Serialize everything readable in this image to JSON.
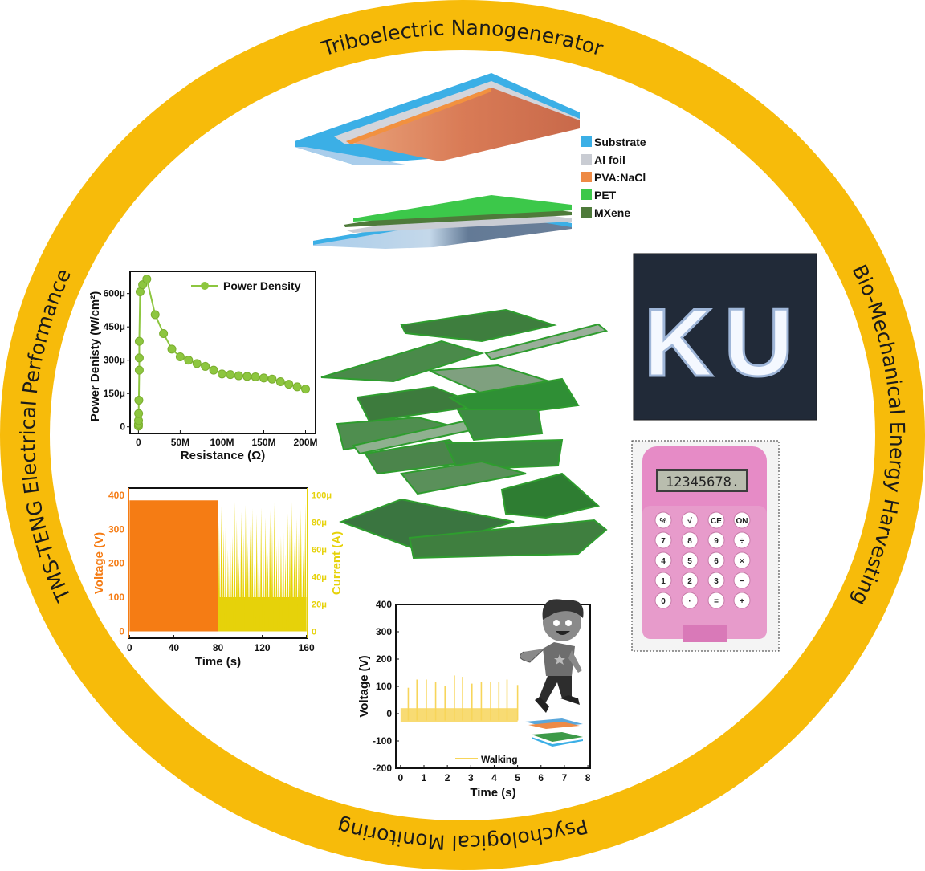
{
  "ring": {
    "color": "#F7BB0A",
    "top": "Triboelectric Nanogenerator",
    "right": "Bio-Mechanical Energy Harvesting",
    "bottom": "Psychological Monitoring",
    "left": "TMS-TENG Electrical Performance"
  },
  "teng_legend": [
    {
      "label": "Substrate",
      "color": "#3BAFE6"
    },
    {
      "label": "Al foil",
      "color": "#C9CCD3"
    },
    {
      "label": "PVA:NaCl",
      "color": "#EE8A45"
    },
    {
      "label": "PET",
      "color": "#3CC84A"
    },
    {
      "label": "MXene",
      "color": "#4E7A3A"
    }
  ],
  "led_photo": {
    "letters": [
      "K",
      "U"
    ]
  },
  "calculator": {
    "display": "12345678.",
    "keys": [
      [
        "%",
        "√",
        "CE",
        "ON"
      ],
      [
        "7",
        "8",
        "9",
        "÷"
      ],
      [
        "4",
        "5",
        "6",
        "×"
      ],
      [
        "1",
        "2",
        "3",
        "−"
      ],
      [
        "0",
        "·",
        "=",
        "+"
      ]
    ]
  },
  "chart_data": [
    {
      "type": "line",
      "title": "",
      "xlabel": "Resistance (Ω)",
      "ylabel": "Power Denisty (W/cm²)",
      "legend": "top-right",
      "series": [
        {
          "name": "Power Density",
          "color": "#8DC63F",
          "points": [
            [
              0.01,
              3
            ],
            [
              0.05,
              12
            ],
            [
              0.1,
              28
            ],
            [
              0.2,
              60
            ],
            [
              0.5,
              120
            ],
            [
              1,
              255
            ],
            [
              1,
              310
            ],
            [
              1,
              385
            ],
            [
              2,
              608
            ],
            [
              5,
              640
            ],
            [
              10,
              665
            ],
            [
              20,
              505
            ],
            [
              30,
              420
            ],
            [
              40,
              350
            ],
            [
              50,
              315
            ],
            [
              60,
              300
            ],
            [
              70,
              285
            ],
            [
              80,
              272
            ],
            [
              90,
              255
            ],
            [
              100,
              238
            ],
            [
              110,
              235
            ],
            [
              120,
              230
            ],
            [
              130,
              227
            ],
            [
              140,
              225
            ],
            [
              150,
              220
            ],
            [
              160,
              215
            ],
            [
              170,
              203
            ],
            [
              180,
              192
            ],
            [
              190,
              180
            ],
            [
              200,
              170
            ]
          ]
        }
      ],
      "x_unit": "MΩ",
      "y_unit": "μW/cm²",
      "xticks": [
        "0",
        "50M",
        "100M",
        "150M",
        "200M"
      ],
      "xtick_values": [
        0,
        50,
        100,
        150,
        200
      ],
      "yticks": [
        "0",
        "150μ",
        "300μ",
        "450μ",
        "600μ"
      ],
      "ytick_values": [
        0,
        150,
        300,
        450,
        600
      ],
      "xlim": [
        -10,
        212
      ],
      "ylim": [
        -30,
        700
      ]
    },
    {
      "type": "bar",
      "xlabel": "Time (s)",
      "ylabel_left": "Voltage (V)",
      "ylabel_right": "Current (A)",
      "voltage": {
        "color": "#F57C14",
        "t_range": [
          0,
          80
        ],
        "peak": 385
      },
      "current": {
        "color": "#E6D20A",
        "t_range": [
          80,
          160
        ],
        "peaks_uA": [
          80,
          92,
          75,
          85,
          60,
          90,
          70,
          95,
          82,
          55,
          88,
          72,
          93,
          65,
          78,
          90,
          50,
          86,
          74,
          91,
          68,
          84,
          58,
          89,
          77,
          94,
          63,
          81,
          70,
          92,
          57,
          87,
          79,
          95,
          66,
          83,
          73,
          90,
          61,
          94
        ]
      },
      "xticks": [
        "0",
        "40",
        "80",
        "120",
        "160"
      ],
      "xtick_values": [
        0,
        40,
        80,
        120,
        160
      ],
      "yticks_left": [
        "0",
        "100",
        "200",
        "300",
        "400"
      ],
      "ytick_left_values": [
        0,
        100,
        200,
        300,
        400
      ],
      "yticks_right": [
        "0",
        "20μ",
        "40μ",
        "60μ",
        "80μ",
        "100μ"
      ],
      "ytick_right_values": [
        0,
        20,
        40,
        60,
        80,
        100
      ],
      "xlim": [
        -1,
        161
      ],
      "ylim_left": [
        -20,
        421
      ],
      "ylim_right_uA": [
        -5,
        105
      ]
    },
    {
      "type": "line",
      "xlabel": "Time (s)",
      "ylabel": "Voltage (V)",
      "legend": "bottom-center",
      "series": [
        {
          "name": "Walking",
          "color": "#F7D55A",
          "spikes": [
            [
              0.33,
              95
            ],
            [
              0.7,
              125
            ],
            [
              1.1,
              125
            ],
            [
              1.5,
              115
            ],
            [
              1.9,
              100
            ],
            [
              2.3,
              140
            ],
            [
              2.65,
              135
            ],
            [
              3.05,
              110
            ],
            [
              3.45,
              115
            ],
            [
              3.85,
              115
            ],
            [
              4.2,
              115
            ],
            [
              4.55,
              125
            ],
            [
              5.0,
              105
            ]
          ],
          "baseline_band": [
            -30,
            20
          ],
          "t_range": [
            0,
            5
          ]
        }
      ],
      "xticks": [
        "0",
        "1",
        "2",
        "3",
        "4",
        "5",
        "6",
        "7",
        "8"
      ],
      "xtick_values": [
        0,
        1,
        2,
        3,
        4,
        5,
        6,
        7,
        8
      ],
      "yticks": [
        "-200",
        "-100",
        "0",
        "100",
        "200",
        "300",
        "400"
      ],
      "ytick_values": [
        -200,
        -100,
        0,
        100,
        200,
        300,
        400
      ],
      "xlim": [
        -0.2,
        8.1
      ],
      "ylim": [
        -200,
        400
      ]
    }
  ]
}
